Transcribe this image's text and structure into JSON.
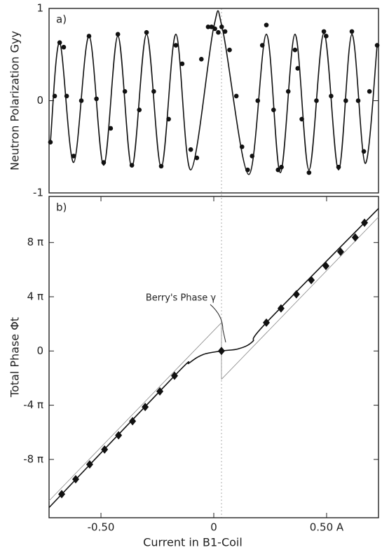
{
  "chart_data": [
    {
      "type": "line",
      "panel_label": "a)",
      "ylabel": "Neutron Polarization Gyy",
      "xlim": [
        -0.73,
        0.73
      ],
      "ylim": [
        -1,
        1
      ],
      "yticks": [
        1,
        0,
        -1
      ],
      "series": [
        {
          "color": "#111111",
          "line": "solid",
          "x": [
            -0.724,
            -0.683,
            -0.621,
            -0.553,
            -0.488,
            -0.425,
            -0.363,
            -0.298,
            -0.233,
            -0.168,
            -0.102,
            0,
            0.04,
            0.155,
            0.233,
            0.295,
            0.36,
            0.422,
            0.488,
            0.553,
            0.612,
            0.671,
            0.724
          ],
          "values": [
            -0.45,
            0.63,
            -0.67,
            0.7,
            -0.7,
            0.7,
            -0.72,
            0.72,
            -0.72,
            0.72,
            -0.75,
            0.8,
            0.76,
            -0.8,
            0.72,
            -0.78,
            0.72,
            -0.75,
            0.73,
            -0.75,
            0.72,
            -0.68,
            0.6
          ]
        },
        {
          "color": "#111111",
          "marker": "circle",
          "x": [
            -0.724,
            -0.705,
            -0.683,
            -0.665,
            -0.652,
            -0.621,
            -0.587,
            -0.553,
            -0.52,
            -0.488,
            -0.457,
            -0.425,
            -0.394,
            -0.363,
            -0.33,
            -0.298,
            -0.266,
            -0.233,
            -0.2,
            -0.168,
            -0.14,
            -0.102,
            -0.075,
            -0.055,
            -0.025,
            -0.01,
            0.005,
            0.02,
            0.035,
            0.05,
            0.07,
            0.1,
            0.125,
            0.15,
            0.17,
            0.195,
            0.215,
            0.233,
            0.265,
            0.285,
            0.3,
            0.33,
            0.36,
            0.372,
            0.39,
            0.422,
            0.455,
            0.488,
            0.498,
            0.52,
            0.553,
            0.585,
            0.612,
            0.64,
            0.665,
            0.69,
            0.724
          ],
          "values": [
            -0.45,
            0.05,
            0.63,
            0.58,
            0.05,
            -0.6,
            0,
            0.7,
            0.02,
            -0.67,
            -0.3,
            0.72,
            0.1,
            -0.7,
            -0.1,
            0.74,
            0.1,
            -0.71,
            -0.2,
            0.6,
            0.4,
            -0.53,
            -0.62,
            0.45,
            0.8,
            0.8,
            0.78,
            0.74,
            0.8,
            0.75,
            0.55,
            0.05,
            -0.5,
            -0.75,
            -0.6,
            0,
            0.6,
            0.82,
            -0.1,
            -0.75,
            -0.72,
            0.1,
            0.55,
            0.35,
            -0.2,
            -0.78,
            0,
            0.75,
            0.7,
            0.05,
            -0.72,
            0,
            0.75,
            0,
            -0.55,
            0.1,
            0.6
          ]
        }
      ]
    },
    {
      "type": "line",
      "panel_label": "b)",
      "ylabel": "Total Phase Φt",
      "xlabel": "Current in B1-Coil",
      "annotation": "Berry's Phase γ",
      "xlim": [
        -0.73,
        0.73
      ],
      "ylim": [
        -12.3,
        11.4
      ],
      "xticks": [
        {
          "value": -0.5,
          "label": "-0.50"
        },
        0,
        {
          "value": 0.5,
          "label": "0.50 A"
        }
      ],
      "yticks": [
        {
          "value": 8,
          "label": "8 π"
        },
        {
          "value": 4,
          "label": "4 π"
        },
        0,
        {
          "value": -4,
          "label": "-4 π"
        },
        {
          "value": -8,
          "label": "-8 π"
        }
      ],
      "series": [
        {
          "color": "#888888",
          "line": "thin",
          "x": [
            -0.73,
            0.034
          ],
          "values": [
            -11.05,
            2.09
          ]
        },
        {
          "color": "#888888",
          "line": "thin",
          "x": [
            0.034,
            0.73
          ],
          "values": [
            -2.09,
            9.88
          ]
        },
        {
          "color": "#888888",
          "line": "thin",
          "x": [
            0.034,
            0.034
          ],
          "values": [
            -2.09,
            2.09
          ]
        },
        {
          "color": "#111111",
          "line": "solid",
          "x": [
            -0.73,
            -0.174,
            -0.109,
            -0.047,
            0.034,
            0.109,
            0.171,
            0.233,
            0.73
          ],
          "values": [
            -11.55,
            -1.83,
            -0.89,
            -0.26,
            0,
            0.16,
            0.68,
            2.09,
            10.51
          ]
        },
        {
          "color": "#111111",
          "marker": "diamond",
          "x": [
            -0.674,
            -0.612,
            -0.55,
            -0.484,
            -0.422,
            -0.36,
            -0.304,
            -0.239,
            -0.174,
            0.034,
            0.233,
            0.298,
            0.366,
            0.432,
            0.497,
            0.562,
            0.627,
            0.668
          ],
          "values": [
            -10.56,
            -9.46,
            -8.37,
            -7.27,
            -6.22,
            -5.18,
            -4.13,
            -2.98,
            -1.83,
            0,
            2.09,
            3.14,
            4.18,
            5.23,
            6.27,
            7.32,
            8.37,
            9.46
          ]
        }
      ]
    }
  ]
}
